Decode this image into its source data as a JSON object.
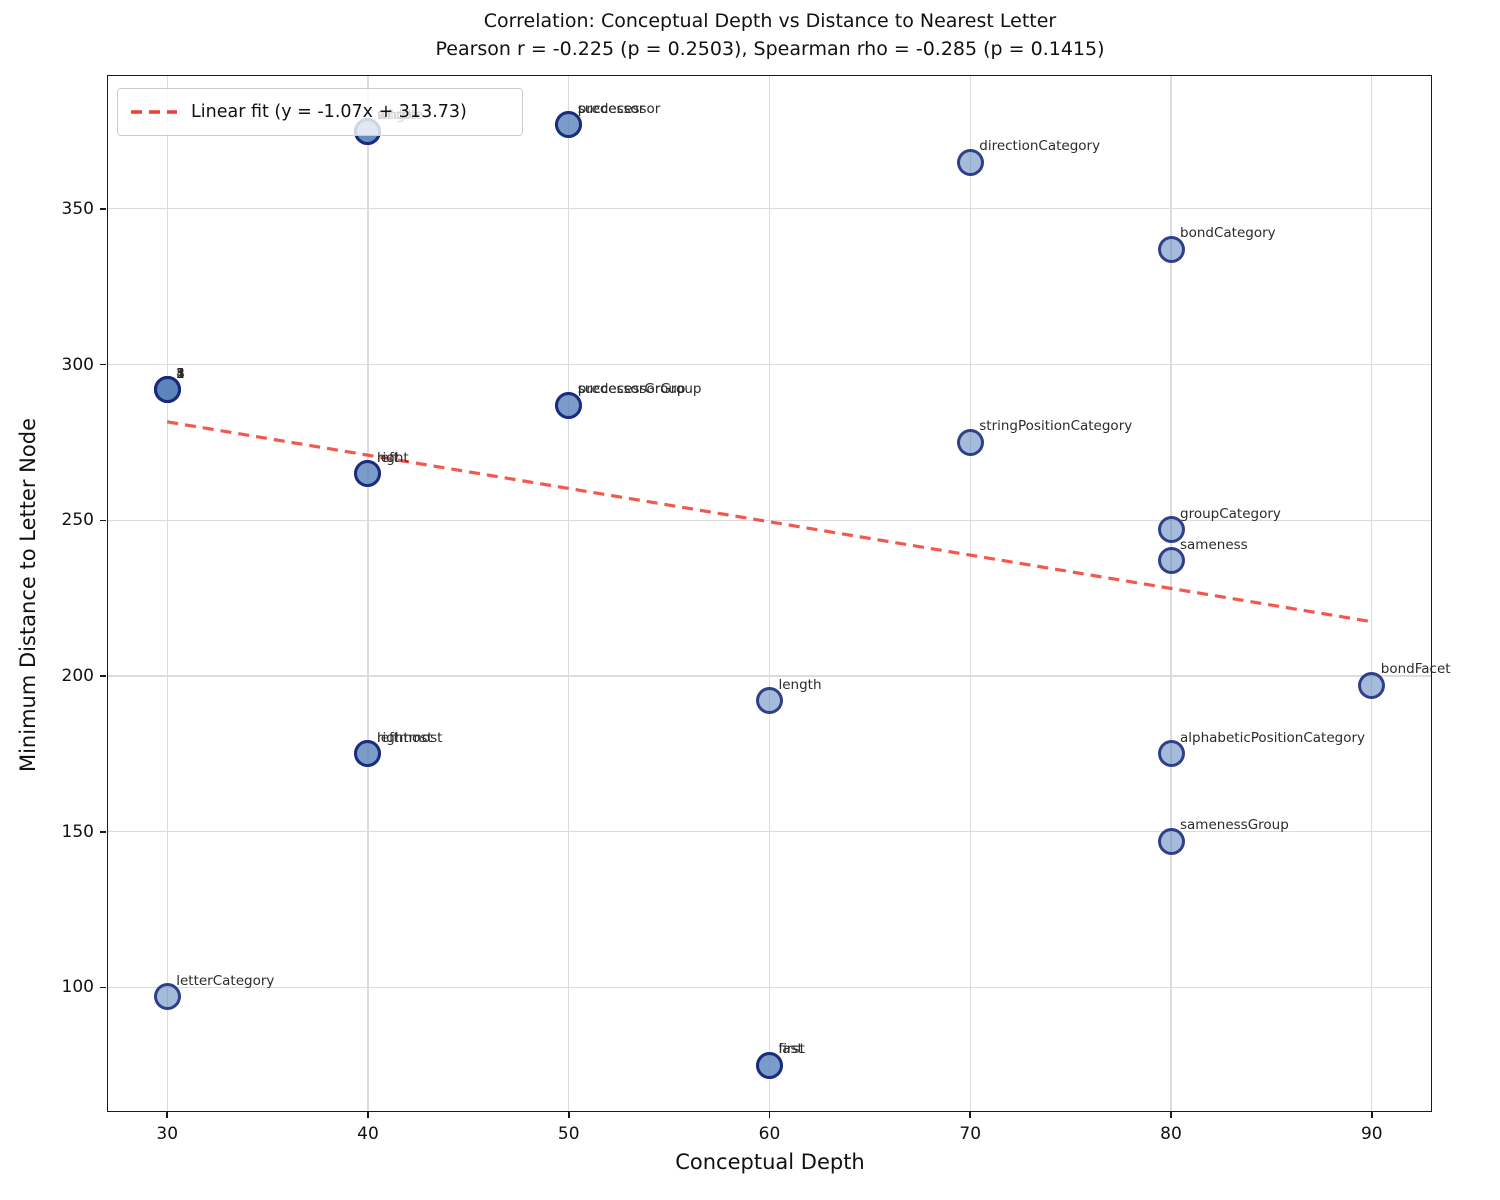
{
  "title": {
    "line1": "Correlation: Conceptual Depth vs Distance to Nearest Letter",
    "line2": "Pearson r = -0.225 (p = 0.2503), Spearman rho = -0.285 (p = 0.1415)"
  },
  "legend": {
    "label": "Linear fit (y = -1.07x + 313.73)"
  },
  "axes": {
    "xlabel": "Conceptual Depth",
    "ylabel": "Minimum Distance to Letter Node",
    "x_ticks": [
      30,
      40,
      50,
      60,
      70,
      80,
      90
    ],
    "y_ticks": [
      100,
      150,
      200,
      250,
      300,
      350
    ]
  },
  "chart_data": {
    "type": "scatter",
    "title": "Correlation: Conceptual Depth vs Distance to Nearest Letter",
    "subtitle": "Pearson r = -0.225 (p = 0.2503), Spearman rho = -0.285 (p = 0.1415)",
    "xlabel": "Conceptual Depth",
    "ylabel": "Minimum Distance to Letter Node",
    "xlim": [
      27,
      93
    ],
    "ylim": [
      60,
      393
    ],
    "grid": true,
    "legend_position": "upper left",
    "stats": {
      "pearson_r": -0.225,
      "pearson_p": 0.2503,
      "spearman_rho": -0.285,
      "spearman_p": 0.1415
    },
    "fit": {
      "slope": -1.07,
      "intercept": 313.73,
      "x_start": 30,
      "x_end": 90,
      "label": "Linear fit (y = -1.07x + 313.73)",
      "style": "dashed"
    },
    "points": [
      {
        "label": "1",
        "x": 30,
        "y": 292
      },
      {
        "label": "2",
        "x": 30,
        "y": 292
      },
      {
        "label": "3",
        "x": 30,
        "y": 292
      },
      {
        "label": "4",
        "x": 30,
        "y": 292
      },
      {
        "label": "5",
        "x": 30,
        "y": 292
      },
      {
        "label": "letterCategory",
        "x": 30,
        "y": 97
      },
      {
        "label": "single",
        "x": 40,
        "y": 375
      },
      {
        "label": "middle",
        "x": 40,
        "y": 375
      },
      {
        "label": "whole",
        "x": 40,
        "y": 375
      },
      {
        "label": "left",
        "x": 40,
        "y": 265
      },
      {
        "label": "right",
        "x": 40,
        "y": 265
      },
      {
        "label": "leftmost",
        "x": 40,
        "y": 175
      },
      {
        "label": "rightmost",
        "x": 40,
        "y": 175
      },
      {
        "label": "predecessor",
        "x": 50,
        "y": 377
      },
      {
        "label": "successor",
        "x": 50,
        "y": 377
      },
      {
        "label": "predecessorGroup",
        "x": 50,
        "y": 287
      },
      {
        "label": "successorGroup",
        "x": 50,
        "y": 287
      },
      {
        "label": "length",
        "x": 60,
        "y": 192
      },
      {
        "label": "first",
        "x": 60,
        "y": 75
      },
      {
        "label": "last",
        "x": 60,
        "y": 75
      },
      {
        "label": "directionCategory",
        "x": 70,
        "y": 365
      },
      {
        "label": "stringPositionCategory",
        "x": 70,
        "y": 275
      },
      {
        "label": "bondCategory",
        "x": 80,
        "y": 337
      },
      {
        "label": "groupCategory",
        "x": 80,
        "y": 247
      },
      {
        "label": "sameness",
        "x": 80,
        "y": 237
      },
      {
        "label": "alphabeticPositionCategory",
        "x": 80,
        "y": 175
      },
      {
        "label": "samenessGroup",
        "x": 80,
        "y": 147
      },
      {
        "label": "bondFacet",
        "x": 90,
        "y": 197
      }
    ],
    "colors": {
      "marker_fill": "#7BA4D0",
      "marker_edge": "#24308F",
      "fit_line": "#F03B30",
      "grid": "#DCDCDC",
      "spine": "#1A1A1A",
      "annotation_text": "#2B2B2B"
    }
  }
}
